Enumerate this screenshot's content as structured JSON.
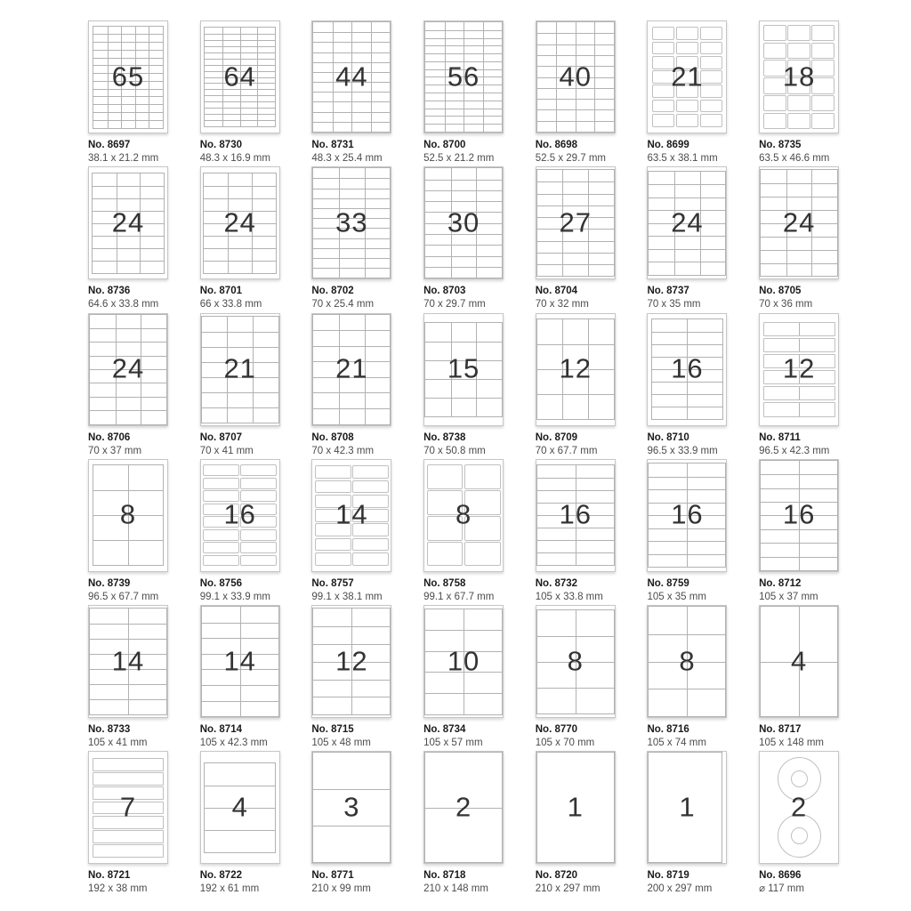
{
  "page": {
    "background": "#ffffff",
    "description": "Label sheet product catalog grid"
  },
  "colors": {
    "grid_line": "#b2b2b2",
    "label_border": "#c0c0c0",
    "sheet_border": "#c6c6c6",
    "number_text": "#333333",
    "product_no_text": "#1b1b1b",
    "dimensions_text": "#4c4c4c"
  },
  "catalog": {
    "sheet_format_mm": [
      210,
      297
    ],
    "items": [
      {
        "no": "No. 8697",
        "size": "38.1 x 21.2 mm",
        "count": "65",
        "cols": 5,
        "rows": 13,
        "type": "grid"
      },
      {
        "no": "No. 8730",
        "size": "48.3 x 16.9 mm",
        "count": "64",
        "cols": 4,
        "rows": 16,
        "type": "grid"
      },
      {
        "no": "No. 8731",
        "size": "48.3 x 25.4 mm",
        "count": "44",
        "cols": 4,
        "rows": 11,
        "type": "grid",
        "bleed": true
      },
      {
        "no": "No. 8700",
        "size": "52.5 x 21.2 mm",
        "count": "56",
        "cols": 4,
        "rows": 14,
        "type": "grid"
      },
      {
        "no": "No. 8698",
        "size": "52.5 x 29.7 mm",
        "count": "40",
        "cols": 4,
        "rows": 10,
        "type": "grid"
      },
      {
        "no": "No. 8699",
        "size": "63.5 x 38.1 mm",
        "count": "21",
        "cols": 3,
        "rows": 7,
        "type": "cells"
      },
      {
        "no": "No. 8735",
        "size": "63.5 x 46.6 mm",
        "count": "18",
        "cols": 3,
        "rows": 6,
        "type": "cells"
      },
      {
        "no": "No. 8736",
        "size": "64.6 x 33.8 mm",
        "count": "24",
        "cols": 3,
        "rows": 8,
        "type": "grid"
      },
      {
        "no": "No. 8701",
        "size": "66 x 33.8 mm",
        "count": "24",
        "cols": 3,
        "rows": 8,
        "type": "grid"
      },
      {
        "no": "No. 8702",
        "size": "70 x 25.4 mm",
        "count": "33",
        "cols": 3,
        "rows": 11,
        "type": "grid",
        "bleed": true
      },
      {
        "no": "No. 8703",
        "size": "70 x 29.7 mm",
        "count": "30",
        "cols": 3,
        "rows": 10,
        "type": "grid"
      },
      {
        "no": "No. 8704",
        "size": "70 x 32 mm",
        "count": "27",
        "cols": 3,
        "rows": 9,
        "type": "grid"
      },
      {
        "no": "No. 8737",
        "size": "70 x 35 mm",
        "count": "24",
        "cols": 3,
        "rows": 8,
        "type": "grid"
      },
      {
        "no": "No. 8705",
        "size": "70 x 36 mm",
        "count": "24",
        "cols": 3,
        "rows": 8,
        "type": "grid"
      },
      {
        "no": "No. 8706",
        "size": "70 x 37 mm",
        "count": "24",
        "cols": 3,
        "rows": 8,
        "type": "grid"
      },
      {
        "no": "No. 8707",
        "size": "70 x 41 mm",
        "count": "21",
        "cols": 3,
        "rows": 7,
        "type": "grid"
      },
      {
        "no": "No. 8708",
        "size": "70 x 42.3 mm",
        "count": "21",
        "cols": 3,
        "rows": 7,
        "type": "grid"
      },
      {
        "no": "No. 8738",
        "size": "70 x 50.8 mm",
        "count": "15",
        "cols": 3,
        "rows": 5,
        "type": "grid"
      },
      {
        "no": "No. 8709",
        "size": "70 x 67.7 mm",
        "count": "12",
        "cols": 3,
        "rows": 4,
        "type": "grid"
      },
      {
        "no": "No. 8710",
        "size": "96.5 x 33.9 mm",
        "count": "16",
        "cols": 2,
        "rows": 8,
        "type": "grid"
      },
      {
        "no": "No. 8711",
        "size": "96.5 x 42.3 mm",
        "count": "12",
        "cols": 2,
        "rows": 6,
        "type": "rows"
      },
      {
        "no": "No. 8739",
        "size": "96.5 x 67.7 mm",
        "count": "8",
        "cols": 2,
        "rows": 4,
        "type": "grid"
      },
      {
        "no": "No. 8756",
        "size": "99.1 x 33.9 mm",
        "count": "16",
        "cols": 2,
        "rows": 8,
        "type": "cells"
      },
      {
        "no": "No. 8757",
        "size": "99.1 x 38.1 mm",
        "count": "14",
        "cols": 2,
        "rows": 7,
        "type": "cells"
      },
      {
        "no": "No. 8758",
        "size": "99.1 x 67.7 mm",
        "count": "8",
        "cols": 2,
        "rows": 4,
        "type": "cells"
      },
      {
        "no": "No. 8732",
        "size": "105 x 33.8 mm",
        "count": "16",
        "cols": 2,
        "rows": 8,
        "type": "grid"
      },
      {
        "no": "No. 8759",
        "size": "105 x 35 mm",
        "count": "16",
        "cols": 2,
        "rows": 8,
        "type": "grid"
      },
      {
        "no": "No. 8712",
        "size": "105 x 37 mm",
        "count": "16",
        "cols": 2,
        "rows": 8,
        "type": "grid"
      },
      {
        "no": "No. 8733",
        "size": "105 x 41 mm",
        "count": "14",
        "cols": 2,
        "rows": 7,
        "type": "grid"
      },
      {
        "no": "No. 8714",
        "size": "105 x 42.3 mm",
        "count": "14",
        "cols": 2,
        "rows": 7,
        "type": "grid"
      },
      {
        "no": "No. 8715",
        "size": "105 x 48 mm",
        "count": "12",
        "cols": 2,
        "rows": 6,
        "type": "grid"
      },
      {
        "no": "No. 8734",
        "size": "105 x 57 mm",
        "count": "10",
        "cols": 2,
        "rows": 5,
        "type": "grid"
      },
      {
        "no": "No. 8770",
        "size": "105 x 70 mm",
        "count": "8",
        "cols": 2,
        "rows": 4,
        "type": "grid"
      },
      {
        "no": "No. 8716",
        "size": "105 x 74 mm",
        "count": "8",
        "cols": 2,
        "rows": 4,
        "type": "grid"
      },
      {
        "no": "No. 8717",
        "size": "105 x 148 mm",
        "count": "4",
        "cols": 2,
        "rows": 2,
        "type": "grid"
      },
      {
        "no": "No. 8721",
        "size": "192 x 38 mm",
        "count": "7",
        "cols": 1,
        "rows": 7,
        "type": "rows"
      },
      {
        "no": "No. 8722",
        "size": "192 x 61 mm",
        "count": "4",
        "cols": 1,
        "rows": 4,
        "type": "grid"
      },
      {
        "no": "No. 8771",
        "size": "210 x 99 mm",
        "count": "3",
        "cols": 1,
        "rows": 3,
        "type": "grid"
      },
      {
        "no": "No. 8718",
        "size": "210 x 148 mm",
        "count": "2",
        "cols": 1,
        "rows": 2,
        "type": "grid"
      },
      {
        "no": "No. 8720",
        "size": "210 x 297 mm",
        "count": "1",
        "cols": 1,
        "rows": 1,
        "type": "grid"
      },
      {
        "no": "No. 8719",
        "size": "200 x 297 mm",
        "count": "1",
        "cols": 1,
        "rows": 1,
        "type": "grid",
        "margin_right_only": true
      },
      {
        "no": "No. 8696",
        "size": "⌀ 117 mm",
        "count": "2",
        "type": "cd",
        "disc_diameter_mm": 117
      }
    ]
  }
}
